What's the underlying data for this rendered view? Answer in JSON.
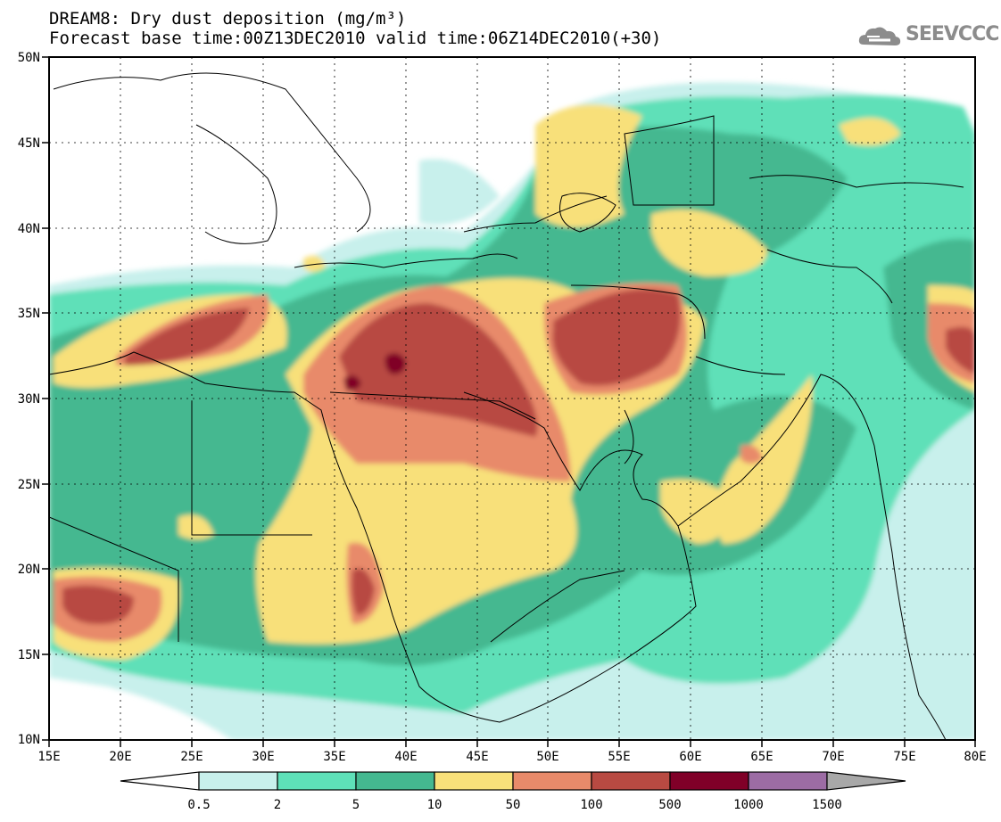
{
  "header": {
    "title_line1": "DREAM8: Dry dust deposition (mg/m³)",
    "title_line2": "Forecast base time:00Z13DEC2010 valid time:06Z14DEC2010(+30)",
    "logo_text": "SEEVCCC"
  },
  "map": {
    "lon_range": [
      15,
      80
    ],
    "lat_range": [
      10,
      50
    ],
    "lon_ticks": [
      "15E",
      "20E",
      "25E",
      "30E",
      "35E",
      "40E",
      "45E",
      "50E",
      "55E",
      "60E",
      "65E",
      "70E",
      "75E",
      "80E"
    ],
    "lat_ticks": [
      "10N",
      "15N",
      "20N",
      "25N",
      "30N",
      "35N",
      "40N",
      "45N",
      "50N"
    ]
  },
  "colorbar": {
    "labels": [
      "0.5",
      "2",
      "5",
      "10",
      "50",
      "100",
      "500",
      "1000",
      "1500"
    ],
    "colors": [
      "#c8f0ec",
      "#5ee0b8",
      "#44b890",
      "#f8e07a",
      "#e88a6a",
      "#b84a42",
      "#800028",
      "#9c6ca4"
    ],
    "low_end_color": "#ffffff",
    "high_end_color": "#a8a8a8"
  },
  "legend": {
    "levels": [
      {
        "label": "0.5-2",
        "color": "#c8f0ec"
      },
      {
        "label": "2-5",
        "color": "#5ee0b8"
      },
      {
        "label": "5-10",
        "color": "#44b890"
      },
      {
        "label": "10-50",
        "color": "#f8e07a"
      },
      {
        "label": "50-100",
        "color": "#e88a6a"
      },
      {
        "label": "100-500",
        "color": "#b84a42"
      },
      {
        "label": "500-1000",
        "color": "#800028"
      },
      {
        "label": "1000-1500",
        "color": "#9c6ca4"
      }
    ]
  }
}
